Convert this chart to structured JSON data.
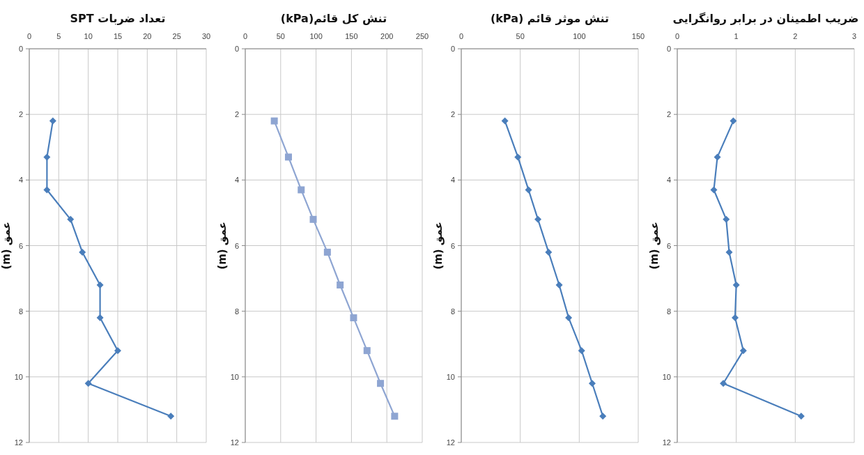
{
  "chart_data": [
    {
      "type": "line",
      "title": "تعداد ضربات SPT",
      "ylabel": "عمق (m)",
      "xlim": [
        0,
        30
      ],
      "xticks": [
        0,
        5,
        10,
        15,
        20,
        25,
        30
      ],
      "ylim": [
        12,
        0
      ],
      "yticks": [
        0,
        2,
        4,
        6,
        8,
        10,
        12
      ],
      "grid": true,
      "marker": "diamond",
      "line_style": "solid",
      "series": [
        {
          "color": "#4a7ebb",
          "x": [
            4,
            3,
            3,
            7,
            9,
            12,
            12,
            15,
            10,
            24
          ],
          "values": [
            2.2,
            3.3,
            4.3,
            5.2,
            6.2,
            7.2,
            8.2,
            9.2,
            10.2,
            11.2
          ]
        }
      ]
    },
    {
      "type": "line",
      "title": "تنش کل قائم(kPa)",
      "ylabel": "عمق (m)",
      "xlim": [
        0,
        250
      ],
      "xticks": [
        0,
        50,
        100,
        150,
        200,
        250
      ],
      "ylim": [
        12,
        0
      ],
      "yticks": [
        0,
        2,
        4,
        6,
        8,
        10,
        12
      ],
      "grid": true,
      "marker": "square",
      "line_style": "solid",
      "series": [
        {
          "color": "#8ea5d2",
          "x": [
            41,
            61,
            79,
            96,
            116,
            134,
            153,
            172,
            191,
            211
          ],
          "values": [
            2.2,
            3.3,
            4.3,
            5.2,
            6.2,
            7.2,
            8.2,
            9.2,
            10.2,
            11.2
          ]
        }
      ]
    },
    {
      "type": "line",
      "title": "تنش موثر قائم (kPa)",
      "ylabel": "عمق (m)",
      "xlim": [
        0,
        150
      ],
      "xticks": [
        0,
        50,
        100,
        150
      ],
      "ylim": [
        12,
        0
      ],
      "yticks": [
        0,
        2,
        4,
        6,
        8,
        10,
        12
      ],
      "grid": true,
      "marker": "diamond",
      "line_style": "solid",
      "series": [
        {
          "color": "#4a7ebb",
          "x": [
            37,
            48,
            57,
            65,
            74,
            83,
            91,
            102,
            111,
            120
          ],
          "values": [
            2.2,
            3.3,
            4.3,
            5.2,
            6.2,
            7.2,
            8.2,
            9.2,
            10.2,
            11.2
          ]
        }
      ]
    },
    {
      "type": "line",
      "title": "ضریب اطمینان در برابر روانگرایی",
      "ylabel": "عمق (m)",
      "xlim": [
        0,
        3
      ],
      "xticks": [
        0,
        1,
        2,
        3
      ],
      "ylim": [
        12,
        0
      ],
      "yticks": [
        0,
        2,
        4,
        6,
        8,
        10,
        12
      ],
      "grid": true,
      "marker": "diamond",
      "line_style": "solid",
      "series": [
        {
          "color": "#4a7ebb",
          "x": [
            0.95,
            0.68,
            0.62,
            0.83,
            0.88,
            1.0,
            0.98,
            1.12,
            0.78,
            2.1
          ],
          "values": [
            2.2,
            3.3,
            4.3,
            5.2,
            6.2,
            7.2,
            8.2,
            9.2,
            10.2,
            11.2
          ]
        }
      ]
    }
  ]
}
